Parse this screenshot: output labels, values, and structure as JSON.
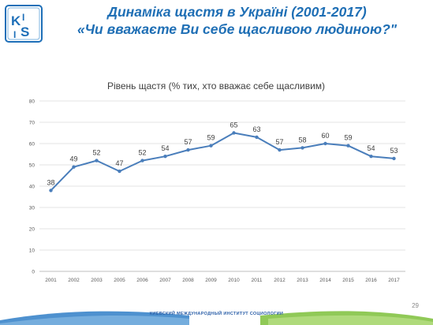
{
  "logo": {
    "text": "KIIS",
    "icon": "kiis-logo-icon",
    "color": "#1e6fb8"
  },
  "slide": {
    "title_line1": "Динаміка щастя в Україні (2001-2017)",
    "title_line2": "«Чи вважаєте Ви себе щасливою людиною?\""
  },
  "chart_data": {
    "type": "line",
    "title": "Рівень щастя (% тих, хто вважає себе щасливим)",
    "xlabel": "",
    "ylabel": "",
    "categories": [
      "2001",
      "2002",
      "2003",
      "2005",
      "2006",
      "2007",
      "2008",
      "2009",
      "2010",
      "2011",
      "2012",
      "2013",
      "2014",
      "2015",
      "2016",
      "2017"
    ],
    "series": [
      {
        "values": [
          38,
          49,
          52,
          47,
          52,
          54,
          57,
          59,
          65,
          63,
          57,
          58,
          60,
          59,
          54,
          53
        ],
        "color": "#4a7ebb"
      }
    ],
    "ylim": [
      0,
      80
    ],
    "yticks": [
      0,
      10,
      20,
      30,
      40,
      50,
      60,
      70,
      80
    ],
    "grid": true,
    "legend": "none",
    "data_labels": true
  },
  "footer": {
    "text": "КИЕВСКИЙ МЕЖДУНАРОДНЫЙ ИНСТИТУТ СОЦИОЛОГИИ",
    "accent_blue": "#2f7ec7",
    "accent_green": "#7cbf3a"
  },
  "page_number": "29"
}
